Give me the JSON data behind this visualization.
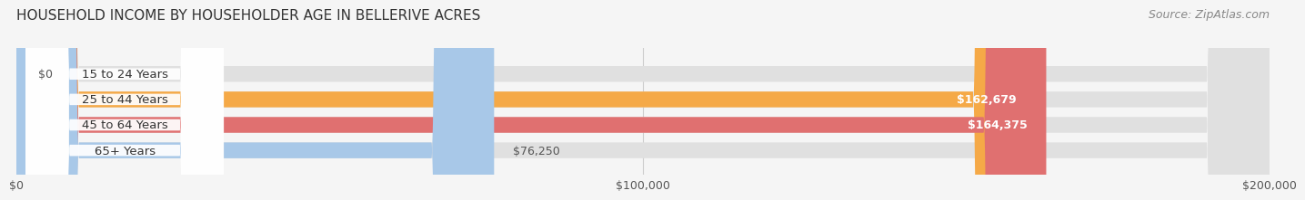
{
  "title": "HOUSEHOLD INCOME BY HOUSEHOLDER AGE IN BELLERIVE ACRES",
  "source": "Source: ZipAtlas.com",
  "categories": [
    "15 to 24 Years",
    "25 to 44 Years",
    "45 to 64 Years",
    "65+ Years"
  ],
  "values": [
    0,
    162679,
    164375,
    76250
  ],
  "bar_colors": [
    "#f7a8b8",
    "#f5a947",
    "#e07070",
    "#a8c8e8"
  ],
  "value_labels": [
    "$0",
    "$162,679",
    "$164,375",
    "$76,250"
  ],
  "xlim": [
    0,
    200000
  ],
  "xtick_labels": [
    "$0",
    "$100,000",
    "$200,000"
  ],
  "background_color": "#f5f5f5",
  "title_fontsize": 11,
  "source_fontsize": 9,
  "bar_height": 0.62
}
